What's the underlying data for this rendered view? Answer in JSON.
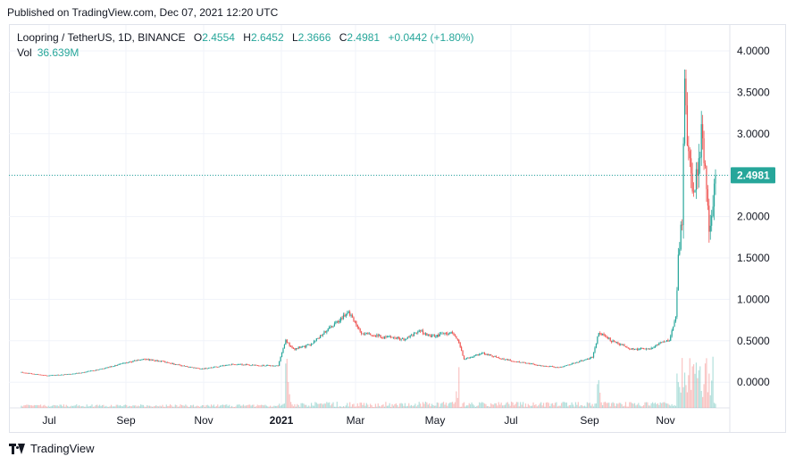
{
  "header": {
    "published": "Published on TradingView.com, Dec 07, 2021 12:20 UTC"
  },
  "legend": {
    "symbol": "Loopring / TetherUS, 1D, BINANCE",
    "open_label": "O",
    "open": "2.4554",
    "high_label": "H",
    "high": "2.6452",
    "low_label": "L",
    "low": "2.3666",
    "close_label": "C",
    "close": "2.4981",
    "change": "+0.0442 (+1.80%)",
    "vol_label": "Vol",
    "vol": "36.639M"
  },
  "footer": {
    "brand": "TradingView"
  },
  "colors": {
    "up": "#26a69a",
    "down": "#ef5350",
    "grid": "#f0f3fa",
    "axis_text": "#131722",
    "price_line": "#26a69a"
  },
  "chart_data": {
    "type": "candlestick",
    "y_axis_ticks": [
      "4.0000",
      "3.5000",
      "3.0000",
      "2.5000",
      "2.0000",
      "1.5000",
      "1.0000",
      "0.5000",
      "0.0000"
    ],
    "ylim": [
      -0.3,
      4.3
    ],
    "x_axis_ticks": [
      {
        "label": "Jul",
        "bold": false
      },
      {
        "label": "Sep",
        "bold": false
      },
      {
        "label": "Nov",
        "bold": false
      },
      {
        "label": "2021",
        "bold": true
      },
      {
        "label": "Mar",
        "bold": false
      },
      {
        "label": "May",
        "bold": false
      },
      {
        "label": "Jul",
        "bold": false
      },
      {
        "label": "Sep",
        "bold": false
      },
      {
        "label": "Nov",
        "bold": false
      }
    ],
    "last_price": "2.4981",
    "price_path": [
      {
        "d": 0,
        "p": 0.12
      },
      {
        "d": 20,
        "p": 0.08
      },
      {
        "d": 40,
        "p": 0.1
      },
      {
        "d": 60,
        "p": 0.15
      },
      {
        "d": 80,
        "p": 0.23
      },
      {
        "d": 95,
        "p": 0.28
      },
      {
        "d": 110,
        "p": 0.25
      },
      {
        "d": 125,
        "p": 0.2
      },
      {
        "d": 140,
        "p": 0.16
      },
      {
        "d": 150,
        "p": 0.18
      },
      {
        "d": 165,
        "p": 0.22
      },
      {
        "d": 185,
        "p": 0.2
      },
      {
        "d": 200,
        "p": 0.2
      },
      {
        "d": 206,
        "p": 0.5
      },
      {
        "d": 212,
        "p": 0.4
      },
      {
        "d": 225,
        "p": 0.45
      },
      {
        "d": 240,
        "p": 0.65
      },
      {
        "d": 255,
        "p": 0.85
      },
      {
        "d": 265,
        "p": 0.6
      },
      {
        "d": 280,
        "p": 0.55
      },
      {
        "d": 300,
        "p": 0.52
      },
      {
        "d": 310,
        "p": 0.62
      },
      {
        "d": 320,
        "p": 0.55
      },
      {
        "d": 335,
        "p": 0.6
      },
      {
        "d": 340,
        "p": 0.52
      },
      {
        "d": 345,
        "p": 0.28
      },
      {
        "d": 360,
        "p": 0.35
      },
      {
        "d": 375,
        "p": 0.28
      },
      {
        "d": 390,
        "p": 0.24
      },
      {
        "d": 405,
        "p": 0.2
      },
      {
        "d": 420,
        "p": 0.18
      },
      {
        "d": 435,
        "p": 0.25
      },
      {
        "d": 445,
        "p": 0.3
      },
      {
        "d": 450,
        "p": 0.6
      },
      {
        "d": 460,
        "p": 0.5
      },
      {
        "d": 475,
        "p": 0.4
      },
      {
        "d": 490,
        "p": 0.4
      },
      {
        "d": 500,
        "p": 0.5
      },
      {
        "d": 505,
        "p": 0.5
      },
      {
        "d": 510,
        "p": 0.8
      },
      {
        "d": 512,
        "p": 1.5
      },
      {
        "d": 515,
        "p": 2.0
      },
      {
        "d": 517,
        "p": 3.5
      },
      {
        "d": 519,
        "p": 3.0
      },
      {
        "d": 521,
        "p": 2.7
      },
      {
        "d": 524,
        "p": 2.2
      },
      {
        "d": 527,
        "p": 2.6
      },
      {
        "d": 530,
        "p": 3.0
      },
      {
        "d": 533,
        "p": 2.7
      },
      {
        "d": 536,
        "p": 1.9
      },
      {
        "d": 539,
        "p": 2.2
      },
      {
        "d": 541,
        "p": 2.4981
      }
    ]
  }
}
